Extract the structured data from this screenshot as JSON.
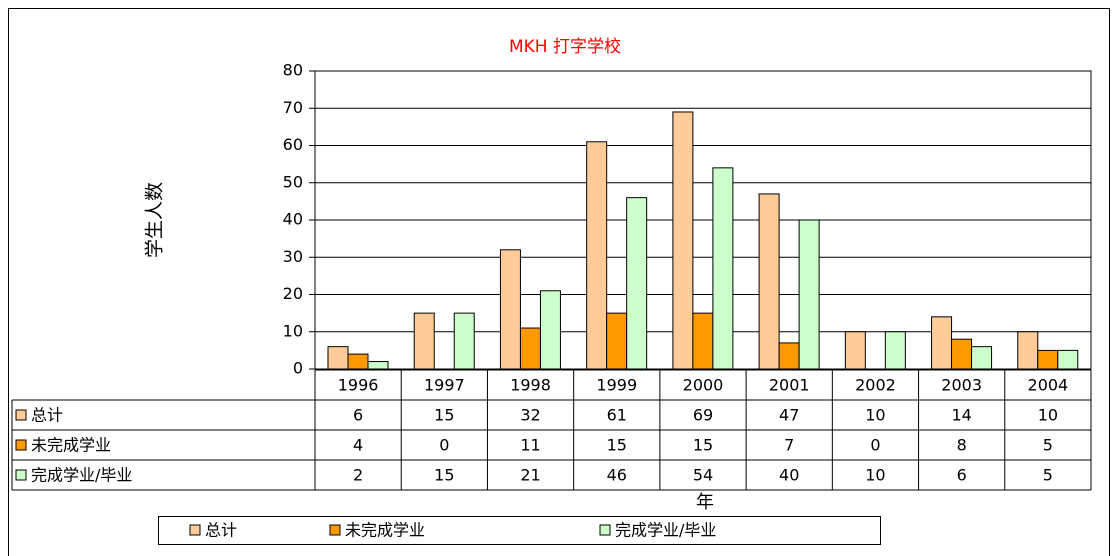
{
  "chart_data": {
    "type": "bar",
    "title": "MKH 打字学校",
    "y_label": "学生人数",
    "x_label": "年",
    "categories": [
      "1996",
      "1997",
      "1998",
      "1999",
      "2000",
      "2001",
      "2002",
      "2003",
      "2004"
    ],
    "series": [
      {
        "name": "总计",
        "color": "#FFCC99",
        "values": [
          6,
          15,
          32,
          61,
          69,
          47,
          10,
          14,
          10
        ]
      },
      {
        "name": "未完成学业",
        "color": "#FF9900",
        "values": [
          4,
          0,
          11,
          15,
          15,
          7,
          0,
          8,
          5
        ]
      },
      {
        "name": "完成学业/毕业",
        "color": "#CCFFCC",
        "values": [
          2,
          15,
          21,
          46,
          54,
          40,
          10,
          6,
          5
        ]
      }
    ],
    "ylim": [
      0,
      80
    ],
    "yticks": [
      0,
      10,
      20,
      30,
      40,
      50,
      60,
      70,
      80
    ],
    "grid": true
  }
}
